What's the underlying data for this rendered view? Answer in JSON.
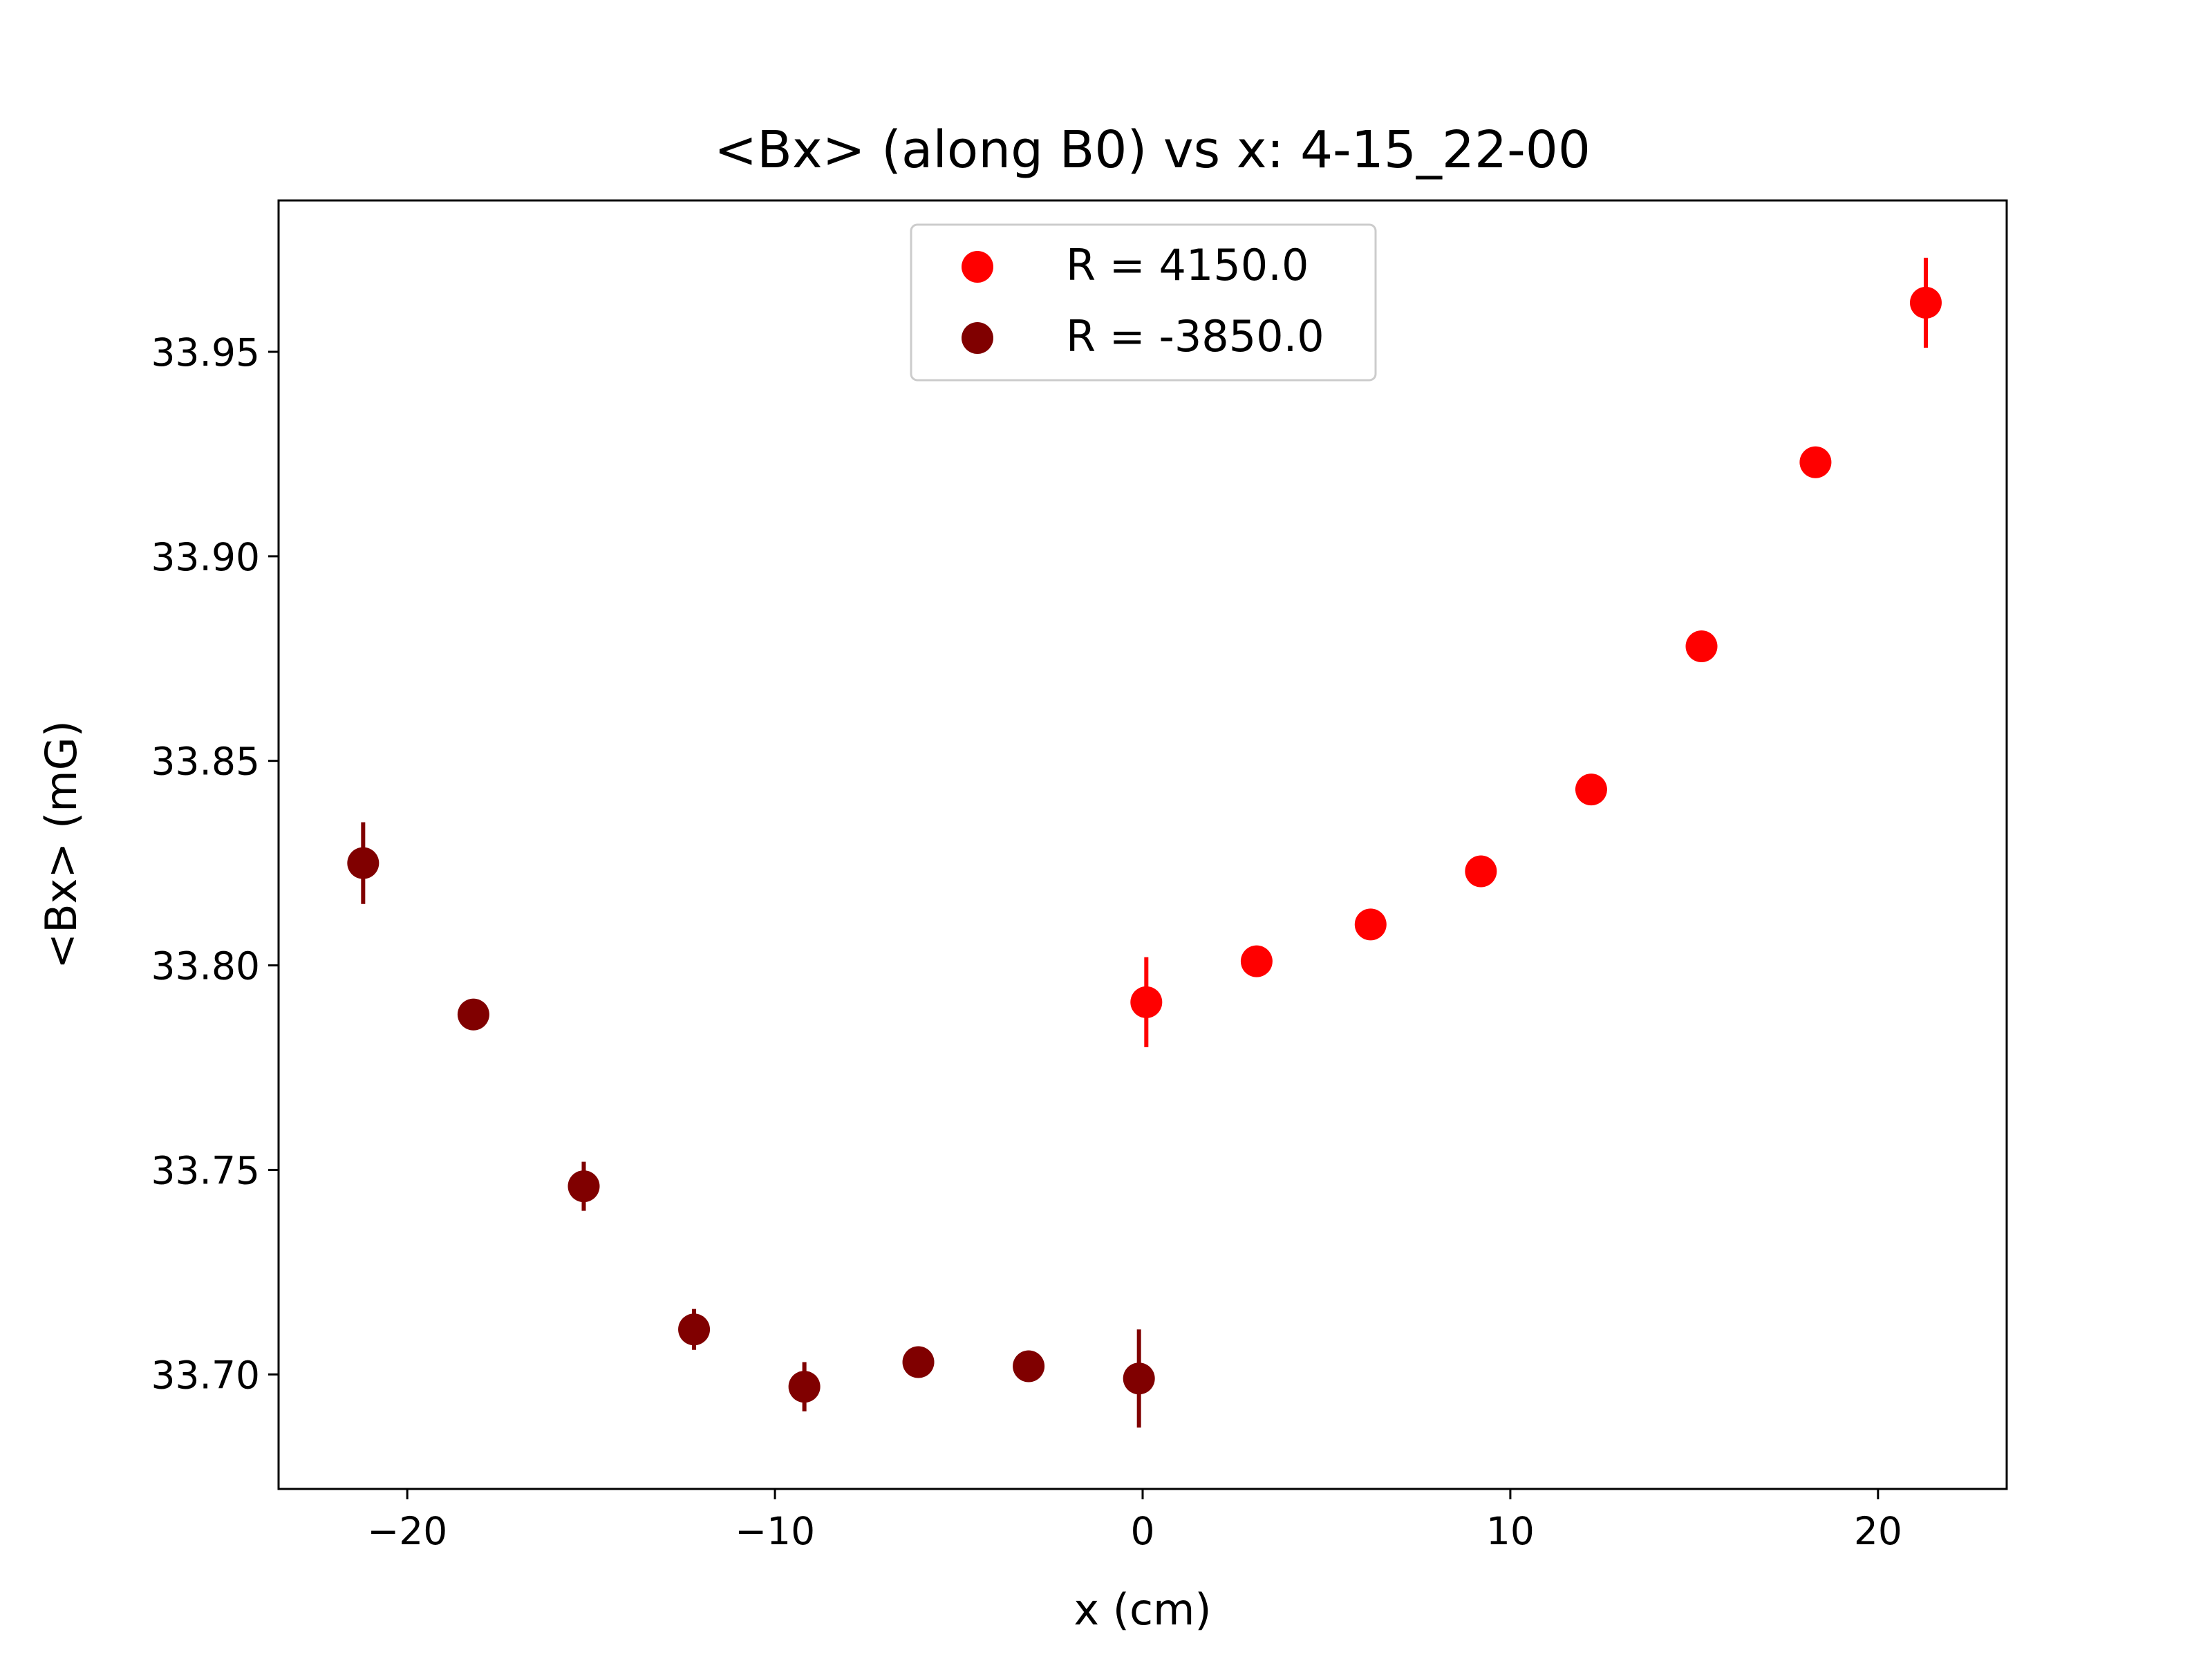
{
  "chart_data": {
    "type": "scatter",
    "title": "<Bx> (along B0) vs x: 4-15_22-00",
    "xlabel": "x (cm)",
    "ylabel": "<Bx> (mG)",
    "xlim": [
      -23.5,
      23.5
    ],
    "ylim": [
      33.672,
      33.987
    ],
    "xticks": [
      -20,
      -10,
      0,
      10,
      20
    ],
    "xtick_labels": [
      "−20",
      "−10",
      "0",
      "10",
      "20"
    ],
    "yticks": [
      33.7,
      33.75,
      33.8,
      33.85,
      33.9,
      33.95
    ],
    "ytick_labels": [
      "33.70",
      "33.75",
      "33.80",
      "33.85",
      "33.90",
      "33.95"
    ],
    "grid": false,
    "legend_position": "top-center",
    "series": [
      {
        "name": "R = 4150.0",
        "color": "#ff0000",
        "x": [
          0.1,
          3.1,
          6.2,
          9.2,
          12.2,
          15.2,
          18.3,
          21.3
        ],
        "y": [
          33.791,
          33.801,
          33.81,
          33.823,
          33.843,
          33.878,
          33.923,
          33.962
        ],
        "yerr": [
          0.011,
          0.002,
          0.002,
          0.002,
          0.003,
          0.002,
          0.002,
          0.011
        ]
      },
      {
        "name": "R = -3850.0",
        "color": "#800000",
        "x": [
          -21.2,
          -18.2,
          -15.2,
          -12.2,
          -9.2,
          -6.1,
          -3.1,
          -0.1
        ],
        "y": [
          33.825,
          33.788,
          33.746,
          33.711,
          33.697,
          33.703,
          33.702,
          33.699
        ],
        "yerr": [
          0.01,
          0.002,
          0.006,
          0.005,
          0.006,
          0.002,
          0.002,
          0.012
        ]
      }
    ]
  }
}
